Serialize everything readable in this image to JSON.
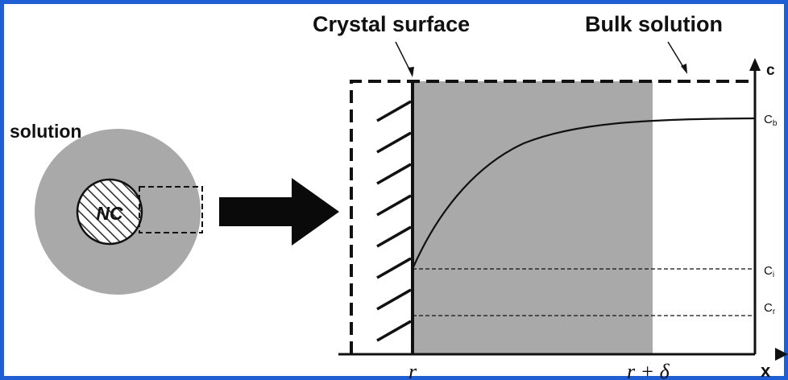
{
  "colors": {
    "frame": "#1f5fd6",
    "shell": "#a9a9a9",
    "ink": "#111111",
    "paper": "#ffffff"
  },
  "labels": {
    "crystal_surface": "Crystal surface",
    "bulk_solution": "Bulk solution",
    "solution": "solution",
    "nanocrystal": "NC",
    "axis_c": "c",
    "axis_x": "x",
    "tick_r": "r",
    "tick_r_delta": "r + δ"
  },
  "levels": [
    {
      "id": "cb",
      "base": "C",
      "sub": "b"
    },
    {
      "id": "ci",
      "base": "C",
      "sub": "i"
    },
    {
      "id": "cr",
      "base": "C",
      "sub": "r"
    }
  ]
}
